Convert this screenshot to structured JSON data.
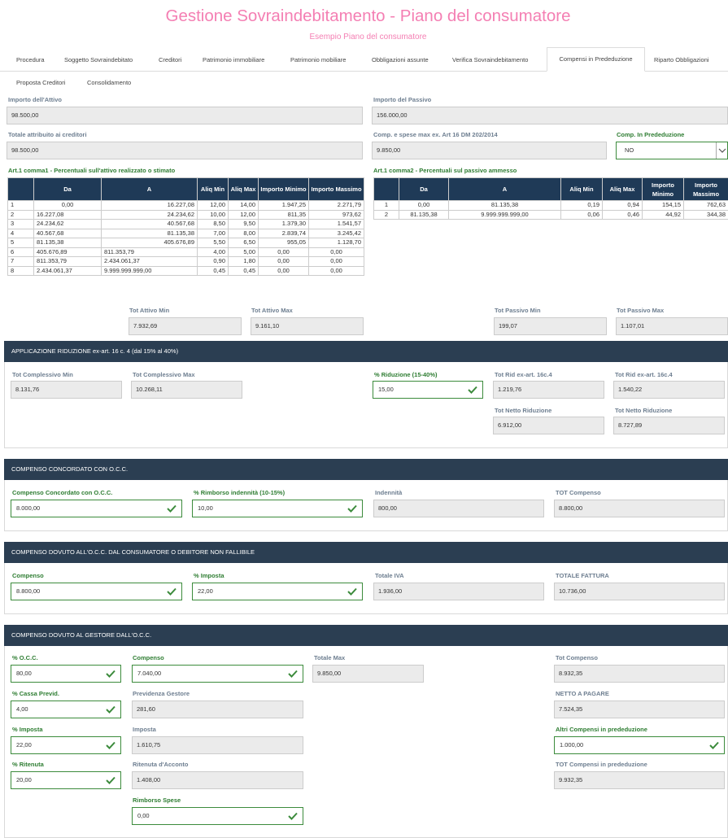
{
  "header": {
    "title": "Gestione Sovraindebitamento - Piano del consumatore",
    "subtitle": "Esempio Piano del consumatore"
  },
  "tabs": [
    "Procedura",
    "Soggetto Sovraindebitato",
    "Creditori",
    "Patrimonio immobiliare",
    "Patrimonio mobiliare",
    "Obbligazioni assunte",
    "Verifica Sovraindebitamento",
    "Compensi in Prededuzione",
    "Riparto Obbligazioni",
    "Proposta Creditori",
    "Consolidamento"
  ],
  "active_tab": "Compensi in Prededuzione",
  "summary": {
    "importo_attivo_label": "Importo dell'Attivo",
    "importo_attivo": "98.500,00",
    "importo_passivo_label": "Importo del Passivo",
    "importo_passivo": "156.000,00",
    "totale_creditori_label": "Totale attribuito ai creditori",
    "totale_creditori": "98.500,00",
    "comp_spese_label": "Comp. e spese max ex. Art 16 DM 202/2014",
    "comp_spese": "9.850,00",
    "prededuzione_label": "Comp. In Prededuzione",
    "prededuzione_value": "NO"
  },
  "table1": {
    "title": "Art.1 comma1 - Percentuali sull'attivo realizzato o stimato",
    "headers": [
      "",
      "Da",
      "A",
      "Aliq Min",
      "Aliq Max",
      "Importo Minimo",
      "Importo Massimo"
    ],
    "rows": [
      [
        "1",
        "0,00",
        "16.227,08",
        "12,00",
        "14,00",
        "1.947,25",
        "2.271,79"
      ],
      [
        "2",
        "16.227,08",
        "24.234,62",
        "10,00",
        "12,00",
        "811,35",
        "973,62"
      ],
      [
        "3",
        "24.234,62",
        "40.567,68",
        "8,50",
        "9,50",
        "1.379,30",
        "1.541,57"
      ],
      [
        "4",
        "40.567,68",
        "81.135,38",
        "7,00",
        "8,00",
        "2.839,74",
        "3.245,42"
      ],
      [
        "5",
        "81.135,38",
        "405.676,89",
        "5,50",
        "6,50",
        "955,05",
        "1.128,70"
      ],
      [
        "6",
        "405.676,89",
        "811.353,79",
        "4,00",
        "5,00",
        "0,00",
        "0,00"
      ],
      [
        "7",
        "811.353,79",
        "2.434.061,37",
        "0,90",
        "1,80",
        "0,00",
        "0,00"
      ],
      [
        "8",
        "2.434.061,37",
        "9.999.999.999,00",
        "0,45",
        "0,45",
        "0,00",
        "0,00"
      ]
    ]
  },
  "table2": {
    "title": "Art.1 comma2 - Percentuali sul passivo ammesso",
    "headers": [
      "",
      "Da",
      "A",
      "Aliq Min",
      "Aliq Max",
      "Importo Minimo",
      "Importo Massimo"
    ],
    "rows": [
      [
        "1",
        "0,00",
        "81.135,38",
        "0,19",
        "0,94",
        "154,15",
        "762,63"
      ],
      [
        "2",
        "81.135,38",
        "9.999.999.999,00",
        "0,06",
        "0,46",
        "44,92",
        "344,38"
      ]
    ]
  },
  "totals": {
    "tot_attivo_min_label": "Tot Attivo Min",
    "tot_attivo_min": "7.932,69",
    "tot_attivo_max_label": "Tot Attivo Max",
    "tot_attivo_max": "9.161,10",
    "tot_passivo_min_label": "Tot Passivo Min",
    "tot_passivo_min": "199,07",
    "tot_passivo_max_label": "Tot Passivo Max",
    "tot_passivo_max": "1.107,01"
  },
  "riduzione": {
    "header": "APPLICAZIONE RIDUZIONE ex-art. 16 c. 4 (dal 15% al 40%)",
    "tot_compl_min_label": "Tot Complessivo Min",
    "tot_compl_min": "8.131,76",
    "tot_compl_max_label": "Tot Complessivo Max",
    "tot_compl_max": "10.268,11",
    "perc_label": "% Riduzione (15-40%)",
    "perc": "15,00",
    "tot_rid_min_label": "Tot Rid ex-art. 16c.4",
    "tot_rid_min": "1.219,76",
    "tot_rid_max_label": "Tot Rid ex-art. 16c.4",
    "tot_rid_max": "1.540,22",
    "netto_min_label": "Tot Netto Riduzione",
    "netto_min": "6.912,00",
    "netto_max_label": "Tot Netto Riduzione",
    "netto_max": "8.727,89"
  },
  "concordato": {
    "header": "COMPENSO CONCORDATO CON O.C.C.",
    "compenso_label": "Compenso Concordato con O.C.C.",
    "compenso": "8.000,00",
    "rimborso_label": "% Rimborso indennità (10-15%)",
    "rimborso": "10,00",
    "indennita_label": "Indennità",
    "indennita": "800,00",
    "tot_label": "TOT Compenso",
    "tot": "8.800,00"
  },
  "dovuto_occ": {
    "header": "COMPENSO DOVUTO ALL'O.C.C. DAL CONSUMATORE O DEBITORE NON FALLIBILE",
    "compenso_label": "Compenso",
    "compenso": "8.800,00",
    "imposta_label": "% Imposta",
    "imposta": "22,00",
    "iva_label": "Totale IVA",
    "iva": "1.936,00",
    "fattura_label": "TOTALE FATTURA",
    "fattura": "10.736,00"
  },
  "gestore": {
    "header": "COMPENSO DOVUTO AL GESTORE DALL'O.C.C.",
    "occ_label": "% O.C.C.",
    "occ": "80,00",
    "compenso_label": "Compenso",
    "compenso": "7.040,00",
    "totale_max_label": "Totale Max",
    "totale_max": "9.850,00",
    "tot_compenso_label": "Tot Compenso",
    "tot_compenso": "8.932,35",
    "cassa_label": "% Cassa Previd.",
    "cassa": "4,00",
    "previdenza_label": "Previdenza Gestore",
    "previdenza": "281,60",
    "netto_label": "NETTO A PAGARE",
    "netto": "7.524,35",
    "imposta_label": "% Imposta",
    "imposta": "22,00",
    "imposta_val_label": "Imposta",
    "imposta_val": "1.610,75",
    "altri_label": "Altri Compensi in prededuzione",
    "altri": "1.000,00",
    "ritenuta_label": "% Ritenuta",
    "ritenuta": "20,00",
    "ritenuta_acc_label": "Ritenuta d'Acconto",
    "ritenuta_acc": "1.408,00",
    "tot_pred_label": "TOT Compensi in prededuzione",
    "tot_pred": "9.932,35",
    "rimborso_label": "Rimborso Spese",
    "rimborso": "0,00"
  }
}
